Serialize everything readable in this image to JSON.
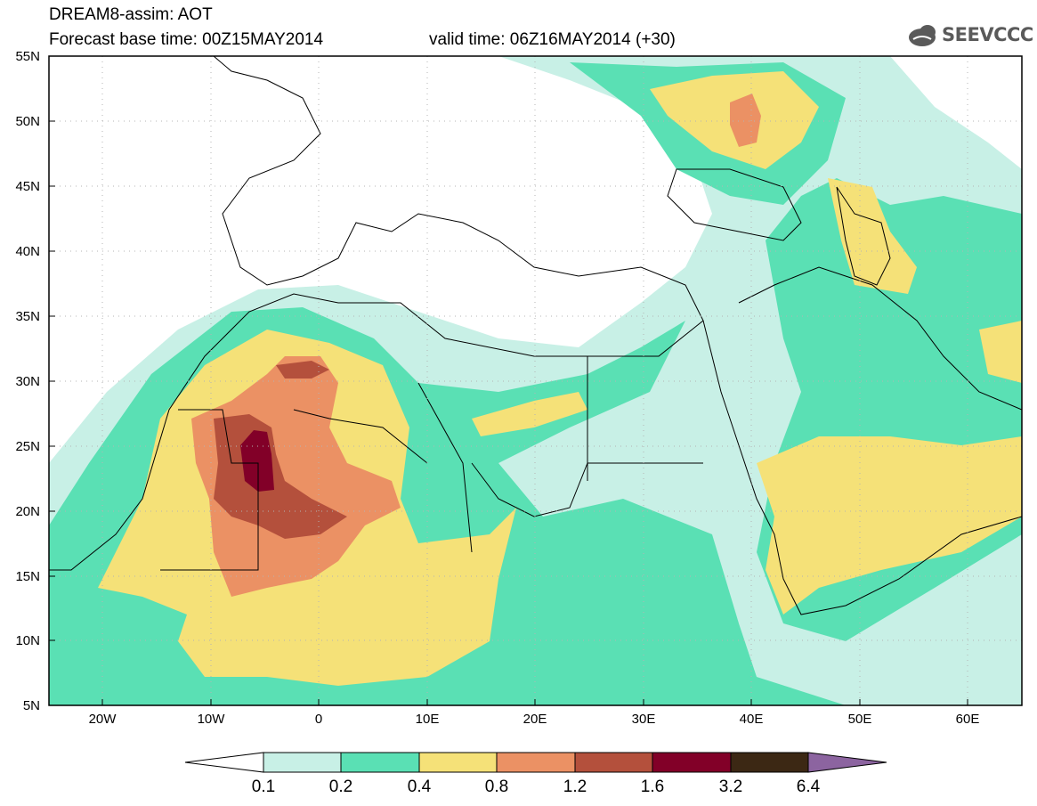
{
  "header": {
    "title_line1": "DREAM8-assim: AOT",
    "title_line2": "Forecast base time: 00Z15MAY2014",
    "valid_time": "valid time: 06Z16MAY2014 (+30)",
    "logo_text": "SEEVCCC"
  },
  "map": {
    "lat_labels": [
      "55N",
      "50N",
      "45N",
      "40N",
      "35N",
      "30N",
      "25N",
      "20N",
      "15N",
      "10N",
      "5N"
    ],
    "lon_labels": [
      "20W",
      "10W",
      "0",
      "10E",
      "20E",
      "30E",
      "40E",
      "50E",
      "60E"
    ],
    "lon_range": [
      -25,
      65
    ],
    "lat_range": [
      5,
      55
    ]
  },
  "legend": {
    "labels": [
      "0.1",
      "0.2",
      "0.4",
      "0.8",
      "1.2",
      "1.6",
      "3.2",
      "6.4"
    ],
    "colors": [
      "#c8f0e6",
      "#5ae0b4",
      "#f5e178",
      "#eb9164",
      "#b4503c",
      "#820028",
      "#3c2814",
      "#8c64a0"
    ],
    "under_color": "#ffffff"
  }
}
